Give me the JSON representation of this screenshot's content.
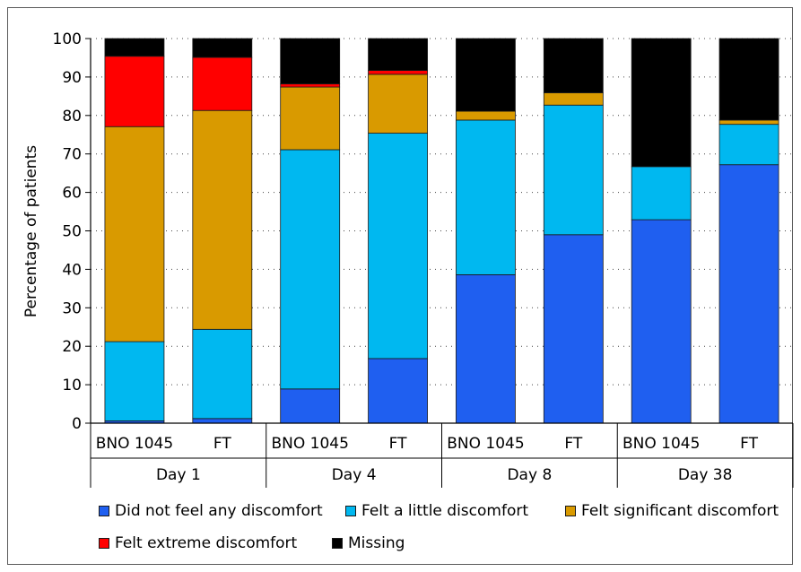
{
  "chart_data": {
    "type": "bar",
    "stacked": true,
    "title": "",
    "xlabel": "",
    "ylabel": "Percentage of patients",
    "ylim": [
      0,
      100
    ],
    "yticks": [
      0,
      10,
      20,
      30,
      40,
      50,
      60,
      70,
      80,
      90,
      100
    ],
    "grid": "horizontal dotted",
    "legend_position": "bottom",
    "groups": [
      "Day 1",
      "Day 4",
      "Day 8",
      "Day 38"
    ],
    "categories": [
      "BNO 1045",
      "FT",
      "BNO 1045",
      "FT",
      "BNO 1045",
      "FT",
      "BNO 1045",
      "FT"
    ],
    "series": [
      {
        "name": "Did not feel any discomfort",
        "color": "#1f5ff0",
        "values": [
          0.6,
          1.2,
          8.9,
          16.8,
          38.6,
          49.0,
          52.9,
          67.2
        ]
      },
      {
        "name": "Felt a little discomfort",
        "color": "#00b8f0",
        "values": [
          20.6,
          23.2,
          62.2,
          58.6,
          40.2,
          33.7,
          13.8,
          10.5
        ]
      },
      {
        "name": "Felt significant discomfort",
        "color": "#d99a00",
        "values": [
          55.9,
          56.9,
          16.3,
          15.3,
          2.3,
          3.2,
          0.0,
          1.1
        ]
      },
      {
        "name": "Felt extreme discomfort",
        "color": "#ff0000",
        "values": [
          18.3,
          13.8,
          0.8,
          1.0,
          0.0,
          0.0,
          0.0,
          0.0
        ]
      },
      {
        "name": "Missing",
        "color": "#000000",
        "values": [
          4.6,
          4.9,
          11.8,
          8.3,
          18.9,
          14.1,
          33.3,
          21.2
        ]
      }
    ]
  }
}
